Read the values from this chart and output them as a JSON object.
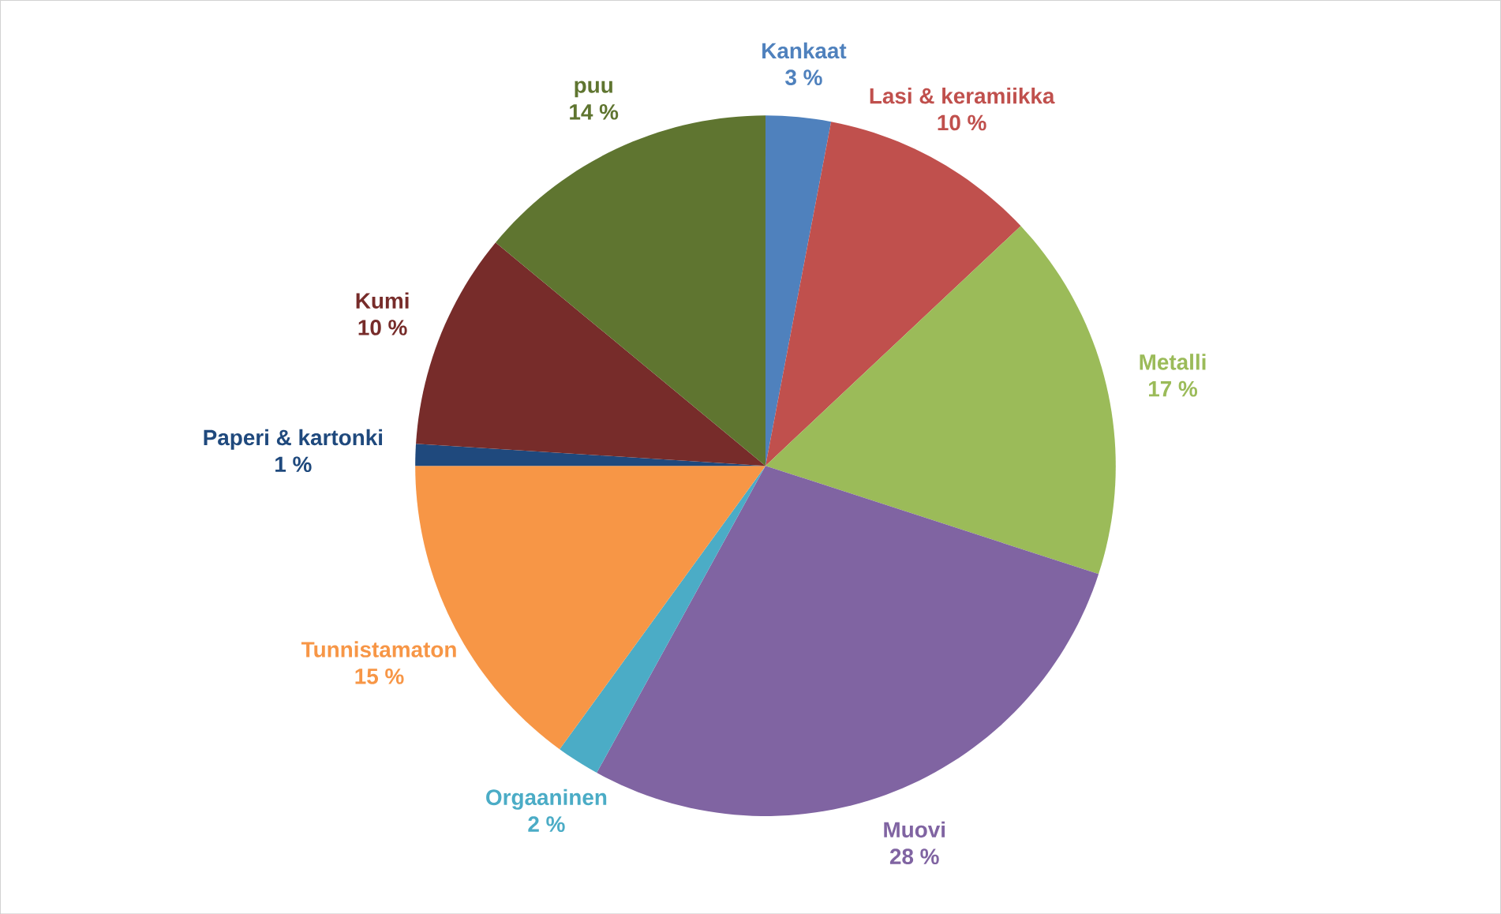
{
  "chart_data": {
    "type": "pie",
    "categories": [
      "Kankaat",
      "Lasi & keramiikka",
      "Metalli",
      "Muovi",
      "Orgaaninen",
      "Tunnistamaton",
      "Paperi & kartonki",
      "Kumi",
      "puu"
    ],
    "values": [
      3,
      10,
      17,
      28,
      2,
      15,
      1,
      10,
      14
    ],
    "value_labels": [
      "3 %",
      "10 %",
      "17 %",
      "28 %",
      "2 %",
      "15 %",
      "1 %",
      "10 %",
      "14 %"
    ],
    "colors": [
      "#4f81bd",
      "#c0504d",
      "#9bbb59",
      "#8064a2",
      "#4bacc6",
      "#f79646",
      "#1f497d",
      "#772c2a",
      "#5f7530"
    ]
  }
}
